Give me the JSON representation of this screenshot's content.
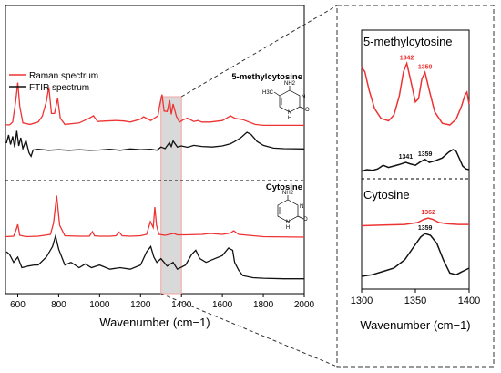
{
  "chart_data": [
    {
      "type": "line",
      "title": "",
      "xlabel": "Wavenumber (cm−1)",
      "xlim": [
        540,
        2000
      ],
      "x_ticks": [
        "600",
        "800",
        "1000",
        "1200",
        "1400",
        "1600",
        "1800",
        "2000"
      ],
      "legend": {
        "placement": "top-left",
        "entries": [
          {
            "name": "Raman spectrum",
            "color": "#ee3333"
          },
          {
            "name": "FTIR spectrum",
            "color": "#111111"
          }
        ]
      },
      "highlight_band": [
        1300,
        1400
      ],
      "panels": [
        {
          "name": "5-methylcytosine",
          "structure_labels": [
            "NH2",
            "H3C",
            "N",
            "O",
            "H",
            "N"
          ]
        },
        {
          "name": "Cytosine",
          "structure_labels": [
            "NH2",
            "N",
            "O",
            "H",
            "N"
          ]
        }
      ],
      "series": [
        {
          "name": "Raman spectrum",
          "sample": "5-methylcytosine",
          "color": "#ee3333",
          "x": [
            540,
            560,
            575,
            590,
            600,
            610,
            625,
            660,
            700,
            720,
            740,
            752,
            765,
            780,
            795,
            808,
            830,
            900,
            950,
            970,
            990,
            1030,
            1080,
            1120,
            1150,
            1200,
            1215,
            1250,
            1285,
            1295,
            1305,
            1315,
            1330,
            1342,
            1350,
            1359,
            1375,
            1390,
            1410,
            1430,
            1460,
            1480,
            1500,
            1540,
            1600,
            1640,
            1660,
            1700,
            1760,
            1800,
            1900,
            2000
          ],
          "y": [
            0.06,
            0.06,
            0.12,
            0.55,
            0.95,
            0.45,
            0.1,
            0.07,
            0.12,
            0.24,
            0.55,
            0.86,
            0.3,
            0.3,
            0.62,
            0.2,
            0.07,
            0.1,
            0.2,
            0.25,
            0.13,
            0.14,
            0.15,
            0.14,
            0.12,
            0.18,
            0.23,
            0.15,
            0.25,
            0.5,
            0.7,
            0.35,
            0.34,
            0.58,
            0.28,
            0.5,
            0.24,
            0.12,
            0.17,
            0.2,
            0.13,
            0.15,
            0.12,
            0.12,
            0.15,
            0.25,
            0.2,
            0.17,
            0.07,
            0.05,
            0.05,
            0.05
          ]
        },
        {
          "name": "FTIR spectrum",
          "sample": "5-methylcytosine",
          "color": "#111111",
          "x": [
            545,
            555,
            565,
            575,
            585,
            595,
            605,
            615,
            625,
            640,
            655,
            665,
            675,
            700,
            750,
            800,
            850,
            900,
            950,
            1000,
            1050,
            1100,
            1150,
            1200,
            1250,
            1280,
            1300,
            1320,
            1341,
            1350,
            1359,
            1380,
            1400,
            1430,
            1460,
            1500,
            1550,
            1600,
            1640,
            1660,
            1690,
            1720,
            1740,
            1770,
            1800,
            1850,
            1900,
            2000
          ],
          "y": [
            0.5,
            0.8,
            0.45,
            0.75,
            0.35,
            0.95,
            0.4,
            0.7,
            0.3,
            0.6,
            0.15,
            0.02,
            0.25,
            0.28,
            0.24,
            0.26,
            0.24,
            0.26,
            0.24,
            0.25,
            0.28,
            0.24,
            0.29,
            0.26,
            0.28,
            0.24,
            0.36,
            0.3,
            0.52,
            0.38,
            0.58,
            0.36,
            0.4,
            0.35,
            0.42,
            0.38,
            0.36,
            0.4,
            0.48,
            0.56,
            0.7,
            0.9,
            0.82,
            0.56,
            0.42,
            0.32,
            0.3,
            0.29
          ]
        },
        {
          "name": "Raman spectrum",
          "sample": "Cytosine",
          "color": "#ee3333",
          "x": [
            540,
            580,
            592,
            600,
            610,
            640,
            700,
            760,
            775,
            790,
            805,
            830,
            900,
            950,
            965,
            975,
            1000,
            1050,
            1080,
            1095,
            1110,
            1150,
            1200,
            1230,
            1248,
            1262,
            1270,
            1278,
            1290,
            1320,
            1362,
            1380,
            1420,
            1500,
            1540,
            1600,
            1640,
            1655,
            1680,
            1800,
            2000
          ],
          "y": [
            0.05,
            0.06,
            0.2,
            0.32,
            0.08,
            0.05,
            0.06,
            0.1,
            0.35,
            0.95,
            0.3,
            0.07,
            0.06,
            0.06,
            0.16,
            0.07,
            0.06,
            0.06,
            0.07,
            0.15,
            0.07,
            0.06,
            0.07,
            0.1,
            0.38,
            0.25,
            0.7,
            0.3,
            0.1,
            0.08,
            0.12,
            0.09,
            0.09,
            0.1,
            0.12,
            0.1,
            0.13,
            0.18,
            0.1,
            0.05,
            0.04
          ]
        },
        {
          "name": "FTIR spectrum",
          "sample": "Cytosine",
          "color": "#111111",
          "x": [
            545,
            560,
            580,
            600,
            620,
            650,
            680,
            700,
            740,
            770,
            785,
            800,
            830,
            860,
            900,
            930,
            960,
            1000,
            1050,
            1100,
            1150,
            1200,
            1230,
            1250,
            1265,
            1280,
            1300,
            1330,
            1359,
            1380,
            1400,
            1420,
            1450,
            1470,
            1490,
            1520,
            1550,
            1600,
            1630,
            1650,
            1660,
            1680,
            1700,
            1750,
            1800,
            1900,
            2000
          ],
          "y": [
            0.55,
            0.5,
            0.35,
            0.45,
            0.25,
            0.28,
            0.3,
            0.3,
            0.45,
            0.65,
            0.85,
            0.6,
            0.3,
            0.35,
            0.25,
            0.32,
            0.25,
            0.3,
            0.22,
            0.25,
            0.22,
            0.3,
            0.55,
            0.65,
            0.45,
            0.35,
            0.42,
            0.28,
            0.35,
            0.22,
            0.26,
            0.3,
            0.5,
            0.58,
            0.42,
            0.35,
            0.4,
            0.48,
            0.62,
            0.58,
            0.35,
            0.2,
            0.1,
            0.06,
            0.05,
            0.04,
            0.04
          ]
        }
      ]
    },
    {
      "type": "line",
      "title": "",
      "xlabel": "Wavenumber (cm−1)",
      "xlim": [
        1300,
        1400
      ],
      "x_ticks": [
        "1300",
        "1350",
        "1400"
      ],
      "panels": [
        {
          "name": "5-methylcytosine",
          "annotations": [
            {
              "text": "1342",
              "color": "#ee3333"
            },
            {
              "text": "1359",
              "color": "#ee3333"
            },
            {
              "text": "1341",
              "color": "#111111"
            },
            {
              "text": "1359",
              "color": "#111111"
            }
          ]
        },
        {
          "name": "Cytosine",
          "annotations": [
            {
              "text": "1362",
              "color": "#ee3333"
            },
            {
              "text": "1359",
              "color": "#111111"
            }
          ]
        }
      ],
      "series": [
        {
          "name": "Raman spectrum",
          "sample": "5-methylcytosine",
          "color": "#ee3333",
          "x": [
            1300,
            1303,
            1307,
            1312,
            1318,
            1325,
            1330,
            1335,
            1339,
            1342,
            1346,
            1350,
            1353,
            1356,
            1359,
            1363,
            1368,
            1375,
            1382,
            1388,
            1393,
            1396,
            1398,
            1400
          ],
          "y": [
            0.9,
            0.85,
            0.62,
            0.4,
            0.28,
            0.25,
            0.32,
            0.55,
            0.85,
            0.95,
            0.72,
            0.48,
            0.52,
            0.76,
            0.84,
            0.62,
            0.36,
            0.22,
            0.2,
            0.27,
            0.43,
            0.56,
            0.6,
            0.45
          ]
        },
        {
          "name": "FTIR spectrum",
          "sample": "5-methylcytosine",
          "color": "#111111",
          "x": [
            1300,
            1305,
            1310,
            1315,
            1320,
            1325,
            1330,
            1335,
            1341,
            1345,
            1350,
            1355,
            1359,
            1363,
            1368,
            1375,
            1381,
            1385,
            1388,
            1391,
            1394,
            1397,
            1400
          ],
          "y": [
            0.06,
            0.1,
            0.08,
            0.12,
            0.22,
            0.16,
            0.2,
            0.24,
            0.3,
            0.26,
            0.22,
            0.32,
            0.38,
            0.3,
            0.34,
            0.42,
            0.58,
            0.65,
            0.6,
            0.4,
            0.2,
            0.12,
            0.1
          ]
        },
        {
          "name": "Raman spectrum",
          "sample": "Cytosine",
          "color": "#ee3333",
          "x": [
            1300,
            1320,
            1340,
            1352,
            1358,
            1362,
            1366,
            1372,
            1380,
            1390,
            1400
          ],
          "y": [
            0.75,
            0.76,
            0.77,
            0.8,
            0.85,
            0.87,
            0.85,
            0.8,
            0.78,
            0.77,
            0.77
          ]
        },
        {
          "name": "FTIR spectrum",
          "sample": "Cytosine",
          "color": "#111111",
          "x": [
            1300,
            1310,
            1320,
            1330,
            1340,
            1348,
            1355,
            1359,
            1364,
            1370,
            1376,
            1382,
            1388,
            1394,
            1400
          ],
          "y": [
            0.1,
            0.12,
            0.16,
            0.2,
            0.3,
            0.45,
            0.58,
            0.62,
            0.6,
            0.5,
            0.3,
            0.14,
            0.12,
            0.16,
            0.2
          ]
        }
      ]
    }
  ]
}
